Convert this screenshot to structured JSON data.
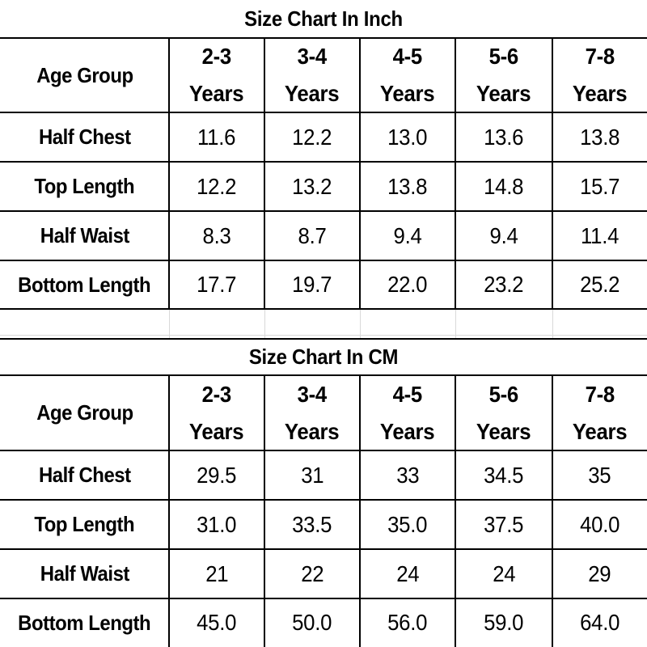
{
  "inch": {
    "title": "Size Chart In Inch",
    "header_label": "Age Group",
    "columns": [
      {
        "top": "2-3",
        "bottom": "Years"
      },
      {
        "top": "3-4",
        "bottom": "Years"
      },
      {
        "top": "4-5",
        "bottom": "Years"
      },
      {
        "top": "5-6",
        "bottom": "Years"
      },
      {
        "top": "7-8",
        "bottom": "Years"
      }
    ],
    "rows": [
      {
        "label": "Half Chest",
        "values": [
          "11.6",
          "12.2",
          "13.0",
          "13.6",
          "13.8"
        ]
      },
      {
        "label": "Top Length",
        "values": [
          "12.2",
          "13.2",
          "13.8",
          "14.8",
          "15.7"
        ]
      },
      {
        "label": "Half Waist",
        "values": [
          "8.3",
          "8.7",
          "9.4",
          "9.4",
          "11.4"
        ]
      },
      {
        "label": "Bottom Length",
        "values": [
          "17.7",
          "19.7",
          "22.0",
          "23.2",
          "25.2"
        ]
      }
    ]
  },
  "cm": {
    "title": "Size Chart In CM",
    "header_label": "Age Group",
    "columns": [
      {
        "top": "2-3",
        "bottom": "Years"
      },
      {
        "top": "3-4",
        "bottom": "Years"
      },
      {
        "top": "4-5",
        "bottom": "Years"
      },
      {
        "top": "5-6",
        "bottom": "Years"
      },
      {
        "top": "7-8",
        "bottom": "Years"
      }
    ],
    "rows": [
      {
        "label": "Half Chest",
        "values": [
          "29.5",
          "31",
          "33",
          "34.5",
          "35"
        ]
      },
      {
        "label": "Top Length",
        "values": [
          "31.0",
          "33.5",
          "35.0",
          "37.5",
          "40.0"
        ]
      },
      {
        "label": "Half Waist",
        "values": [
          "21",
          "22",
          "24",
          "24",
          "29"
        ]
      },
      {
        "label": "Bottom Length",
        "values": [
          "45.0",
          "50.0",
          "56.0",
          "59.0",
          "64.0"
        ]
      }
    ]
  }
}
